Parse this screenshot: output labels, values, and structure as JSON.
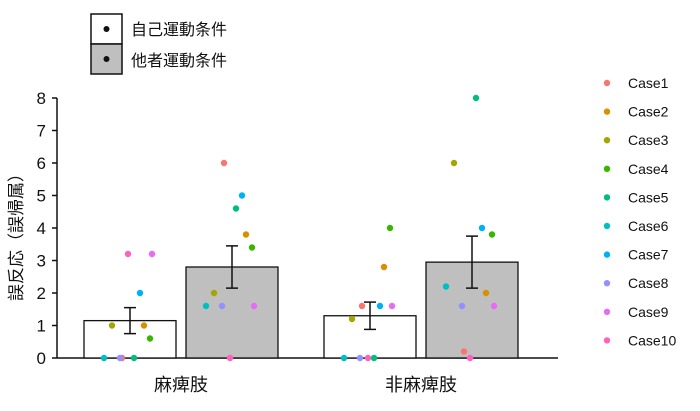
{
  "chart_data": {
    "type": "bar",
    "categories": [
      "麻痺肢",
      "非麻痺肢"
    ],
    "ylabel": "誤反応（誤帰属）",
    "xlabel": "",
    "ylim": [
      0,
      8
    ],
    "yticks": [
      0,
      1,
      2,
      3,
      4,
      5,
      6,
      7,
      8
    ],
    "grid": false,
    "legend_placement": "top-left",
    "series": [
      {
        "name": "自己運動条件",
        "fill": "#ffffff",
        "values": [
          1.15,
          1.3
        ],
        "errors": [
          0.4,
          0.42
        ],
        "points": [
          [
            0.0,
            1.0,
            1.0,
            0.6,
            0.0,
            0.0,
            2.0,
            0.0,
            3.2,
            3.2
          ],
          [
            1.6,
            2.8,
            1.2,
            4.0,
            0.0,
            0.0,
            1.6,
            0.0,
            1.6,
            0.0
          ]
        ]
      },
      {
        "name": "他者運動条件",
        "fill": "#bfbfbf",
        "values": [
          2.8,
          2.95
        ],
        "errors": [
          0.65,
          0.8
        ],
        "points": [
          [
            6.0,
            3.8,
            2.0,
            3.4,
            4.6,
            1.6,
            5.0,
            1.6,
            1.6,
            0.0
          ],
          [
            0.2,
            2.0,
            6.0,
            3.8,
            8.0,
            2.2,
            4.0,
            1.6,
            1.6,
            0.0
          ]
        ]
      }
    ],
    "cases": [
      {
        "name": "Case1",
        "color": "#f8766d"
      },
      {
        "name": "Case2",
        "color": "#d89000"
      },
      {
        "name": "Case3",
        "color": "#a3a500"
      },
      {
        "name": "Case4",
        "color": "#39b600"
      },
      {
        "name": "Case5",
        "color": "#00bf7d"
      },
      {
        "name": "Case6",
        "color": "#00bfc4"
      },
      {
        "name": "Case7",
        "color": "#00b0f6"
      },
      {
        "name": "Case8",
        "color": "#9590ff"
      },
      {
        "name": "Case9",
        "color": "#e76bf3"
      },
      {
        "name": "Case10",
        "color": "#ff62bc"
      }
    ]
  }
}
